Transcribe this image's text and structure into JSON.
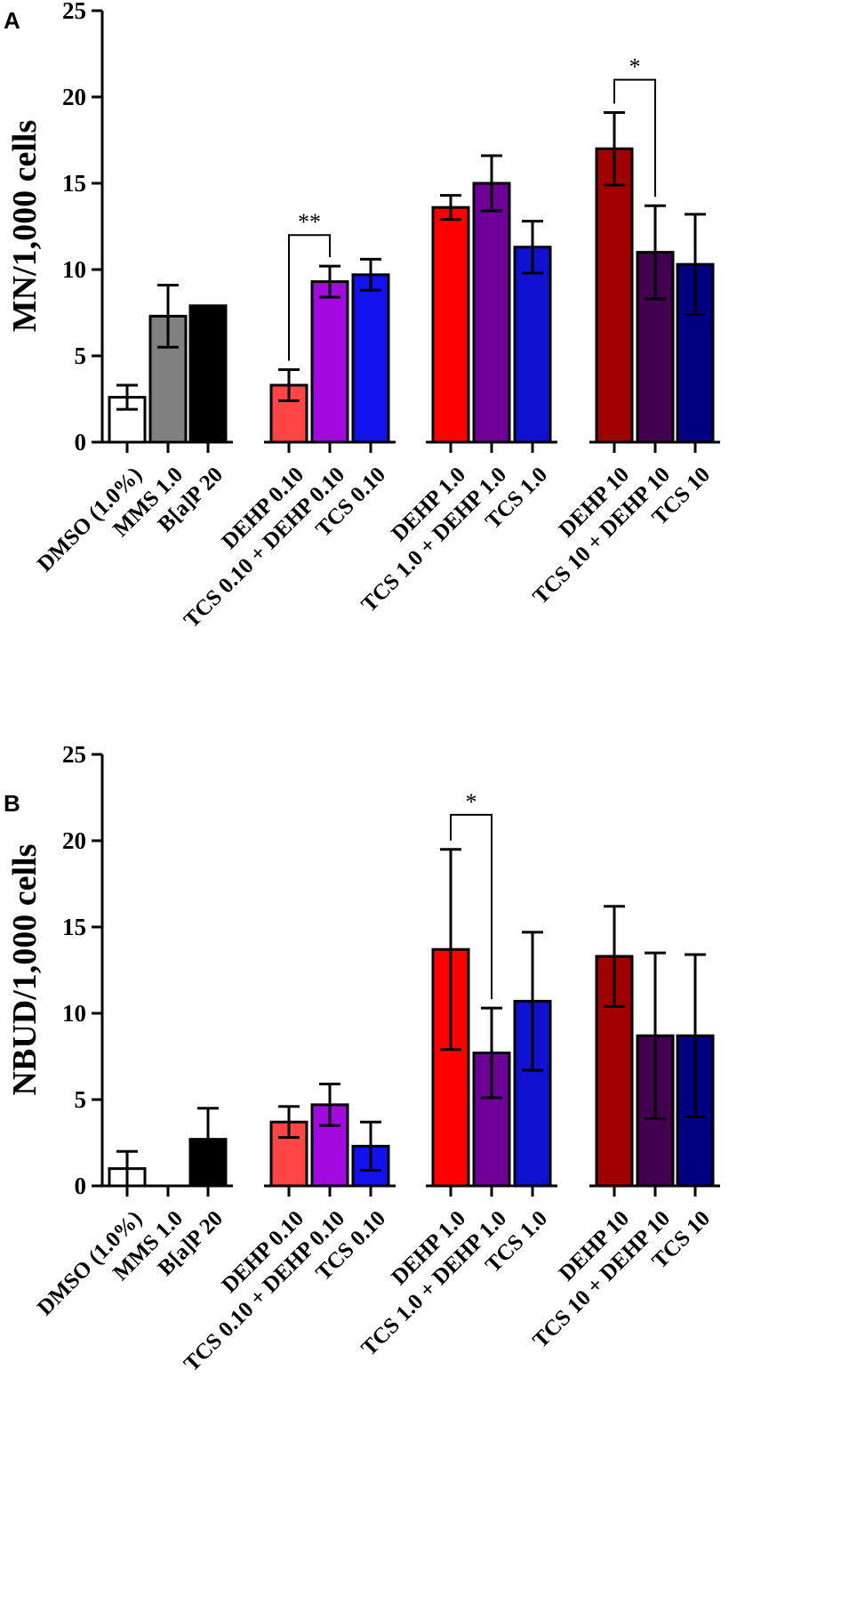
{
  "chart_data": [
    {
      "panel": "A",
      "type": "bar",
      "ylabel": "MN/1,000 cells",
      "xlabel": "",
      "ylim": [
        0,
        25
      ],
      "yticks": [
        0,
        5,
        10,
        15,
        20,
        25
      ],
      "categories": [
        "DMSO (1.0%)",
        "MMS 1.0",
        "B[a]P 20",
        "DEHP 0.10",
        "TCS 0.10 + DEHP 0.10",
        "TCS 0.10",
        "DEHP 1.0",
        "TCS 1.0 + DEHP 1.0",
        "TCS 1.0",
        "DEHP 10",
        "TCS 10 + DEHP 10",
        "TCS 10"
      ],
      "groups": [
        [
          0,
          1,
          2
        ],
        [
          3,
          4,
          5
        ],
        [
          6,
          7,
          8
        ],
        [
          9,
          10,
          11
        ]
      ],
      "values": [
        2.6,
        7.3,
        7.9,
        3.3,
        9.3,
        9.7,
        13.6,
        15.0,
        11.3,
        17.0,
        11.0,
        10.3
      ],
      "errors": [
        0.7,
        1.8,
        0,
        0.9,
        0.9,
        0.9,
        0.7,
        1.6,
        1.5,
        2.1,
        2.7,
        2.9
      ],
      "colors": [
        "#ffffff",
        "#808080",
        "#000000",
        "#ff4545",
        "#a30ae0",
        "#1212ee",
        "#ff0000",
        "#6e0098",
        "#1010d0",
        "#a00000",
        "#42004f",
        "#000080"
      ],
      "significance": [
        {
          "from": 3,
          "to": 4,
          "label": "**",
          "y": 12.0
        },
        {
          "from": 9,
          "to": 10,
          "label": "*",
          "y": 21.0
        }
      ]
    },
    {
      "panel": "B",
      "type": "bar",
      "ylabel": "NBUD/1,000 cells",
      "xlabel": "",
      "ylim": [
        0,
        25
      ],
      "yticks": [
        0,
        5,
        10,
        15,
        20,
        25
      ],
      "categories": [
        "DMSO (1.0%)",
        "MMS 1.0",
        "B[a]P 20",
        "DEHP 0.10",
        "TCS 0.10 + DEHP 0.10",
        "TCS 0.10",
        "DEHP 1.0",
        "TCS 1.0 + DEHP 1.0",
        "TCS 1.0",
        "DEHP 10",
        "TCS 10 + DEHP 10",
        "TCS 10"
      ],
      "groups": [
        [
          0,
          1,
          2
        ],
        [
          3,
          4,
          5
        ],
        [
          6,
          7,
          8
        ],
        [
          9,
          10,
          11
        ]
      ],
      "values": [
        1.0,
        0,
        2.7,
        3.7,
        4.7,
        2.3,
        13.7,
        7.7,
        10.7,
        13.3,
        8.7,
        8.7
      ],
      "errors": [
        1.0,
        0,
        1.8,
        0.9,
        1.2,
        1.4,
        5.8,
        2.6,
        4.0,
        2.9,
        4.8,
        4.7
      ],
      "colors": [
        "#ffffff",
        "#808080",
        "#000000",
        "#ff4545",
        "#a30ae0",
        "#1212ee",
        "#ff0000",
        "#6e0098",
        "#1010d0",
        "#a00000",
        "#42004f",
        "#000080"
      ],
      "significance": [
        {
          "from": 6,
          "to": 7,
          "label": "*",
          "y": 21.5
        }
      ]
    }
  ]
}
